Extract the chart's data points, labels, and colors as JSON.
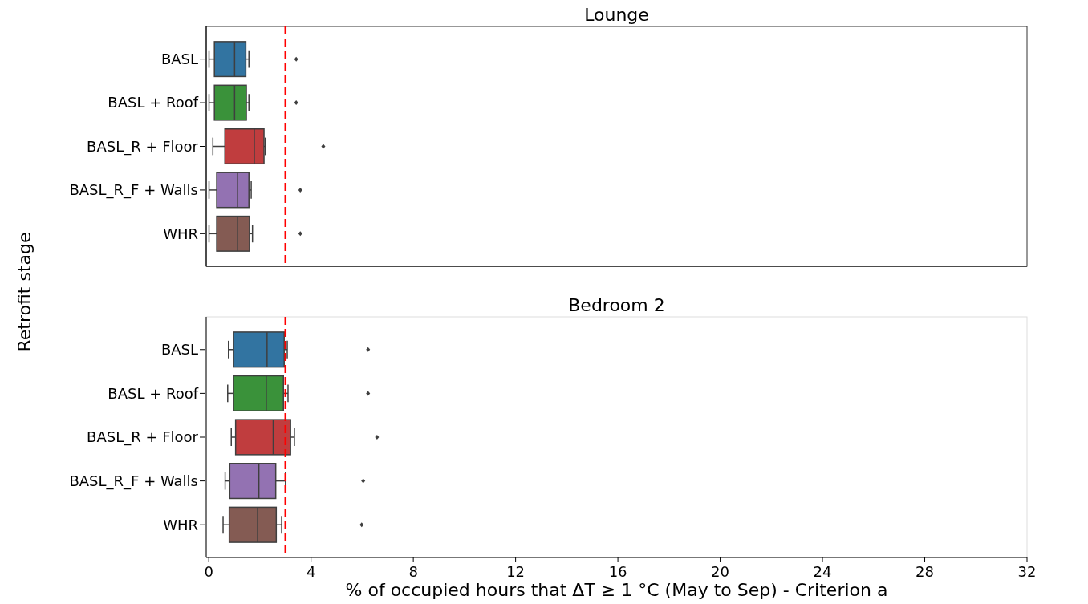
{
  "chart_data": [
    {
      "type": "box",
      "title": "Lounge",
      "ylabel": "Retrofit stage",
      "orientation": "horizontal",
      "categories": [
        "BASL",
        "BASL + Roof",
        "BASL_R + Floor",
        "BASL_R_F + Walls",
        "WHR"
      ],
      "colors": [
        "#3274a1",
        "#3a923a",
        "#c03d3e",
        "#9372b2",
        "#845b53"
      ],
      "xlim": [
        -0.1,
        32
      ],
      "xticks": [
        0,
        4,
        8,
        12,
        16,
        20,
        24,
        28,
        32
      ],
      "tick_labels": "y",
      "ref_lines": [
        {
          "axis": "x",
          "value": 3,
          "color": "#ff0000",
          "line_style": "dashed"
        }
      ],
      "boxes": [
        {
          "low": 0.01,
          "q1": 0.22,
          "median": 1.01,
          "q3": 1.45,
          "high": 1.57,
          "outliers": [
            3.42
          ]
        },
        {
          "low": 0.01,
          "q1": 0.22,
          "median": 1.01,
          "q3": 1.47,
          "high": 1.57,
          "outliers": [
            3.42
          ]
        },
        {
          "low": 0.16,
          "q1": 0.63,
          "median": 1.78,
          "q3": 2.16,
          "high": 2.21,
          "outliers": [
            4.48
          ]
        },
        {
          "low": 0.01,
          "q1": 0.31,
          "median": 1.12,
          "q3": 1.57,
          "high": 1.66,
          "outliers": [
            3.58
          ]
        },
        {
          "low": 0.01,
          "q1": 0.31,
          "median": 1.12,
          "q3": 1.59,
          "high": 1.71,
          "outliers": [
            3.58
          ]
        }
      ]
    },
    {
      "type": "box",
      "title": "Bedroom 2",
      "xlabel": "% of occupied hours that ΔT ≥ 1 °C (May to Sep) - Criterion a",
      "orientation": "horizontal",
      "categories": [
        "BASL",
        "BASL + Roof",
        "BASL_R + Floor",
        "BASL_R_F + Walls",
        "WHR"
      ],
      "colors": [
        "#3274a1",
        "#3a923a",
        "#c03d3e",
        "#9372b2",
        "#845b53"
      ],
      "xlim": [
        -0.1,
        32
      ],
      "xticks": [
        0,
        4,
        8,
        12,
        16,
        20,
        24,
        28,
        32
      ],
      "ref_lines": [
        {
          "axis": "x",
          "value": 3,
          "color": "#ff0000",
          "line_style": "dashed"
        }
      ],
      "boxes": [
        {
          "low": 0.77,
          "q1": 0.97,
          "median": 2.28,
          "q3": 2.95,
          "high": 3.07,
          "outliers": [
            6.23
          ]
        },
        {
          "low": 0.74,
          "q1": 0.97,
          "median": 2.25,
          "q3": 2.92,
          "high": 3.1,
          "outliers": [
            6.23
          ]
        },
        {
          "low": 0.88,
          "q1": 1.05,
          "median": 2.52,
          "q3": 3.2,
          "high": 3.35,
          "outliers": [
            6.58
          ]
        },
        {
          "low": 0.64,
          "q1": 0.82,
          "median": 1.96,
          "q3": 2.62,
          "high": 3.0,
          "outliers": [
            6.04
          ]
        },
        {
          "low": 0.56,
          "q1": 0.8,
          "median": 1.91,
          "q3": 2.64,
          "high": 2.85,
          "outliers": [
            5.98
          ]
        }
      ]
    }
  ]
}
